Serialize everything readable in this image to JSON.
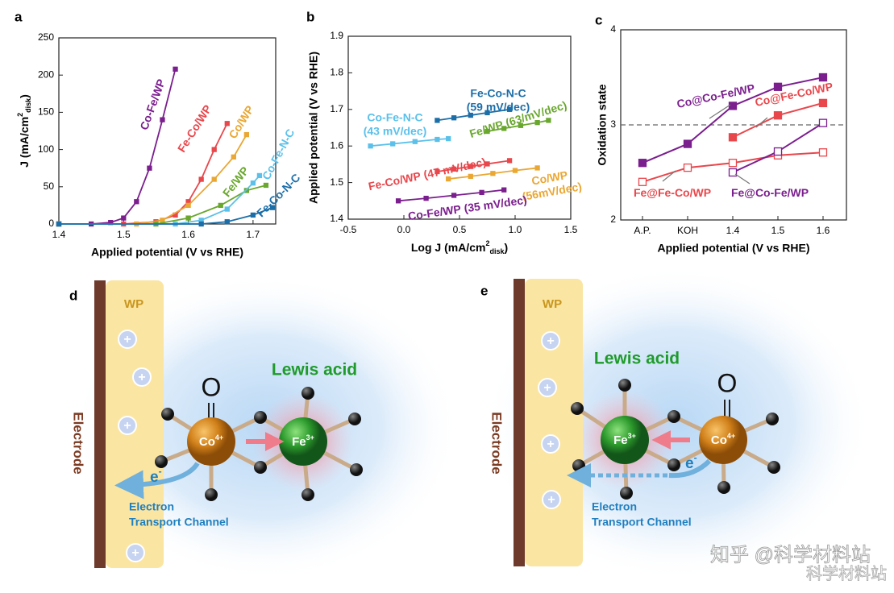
{
  "chart_data": [
    {
      "type": "line",
      "panel": "a",
      "x_label": "Applied potential (V vs RHE)",
      "y_label": [
        "J (mA/cm",
        "2",
        "disk",
        ")"
      ],
      "xlim": [
        1.4,
        1.735
      ],
      "xticks": [
        1.4,
        1.5,
        1.6,
        1.7
      ],
      "ylim": [
        0,
        250
      ],
      "yticks": [
        0,
        50,
        100,
        150,
        200,
        250
      ],
      "series": [
        {
          "name": "Co-Fe/WP",
          "color": "#7b1e8e",
          "x": [
            1.4,
            1.45,
            1.48,
            1.5,
            1.52,
            1.54,
            1.56,
            1.58
          ],
          "values": [
            0,
            0,
            2,
            8,
            30,
            75,
            140,
            208
          ]
        },
        {
          "name": "Fe-Co/WP",
          "color": "#e8474c",
          "x": [
            1.4,
            1.5,
            1.55,
            1.58,
            1.6,
            1.62,
            1.64,
            1.66
          ],
          "values": [
            0,
            0,
            3,
            12,
            30,
            60,
            100,
            135
          ]
        },
        {
          "name": "Co/WP",
          "color": "#eaa733",
          "x": [
            1.4,
            1.52,
            1.56,
            1.6,
            1.64,
            1.67,
            1.69
          ],
          "values": [
            0,
            0,
            5,
            25,
            60,
            90,
            120
          ]
        },
        {
          "name": "Fe/WP",
          "color": "#6aa72e",
          "x": [
            1.4,
            1.55,
            1.6,
            1.65,
            1.69,
            1.72
          ],
          "values": [
            0,
            0,
            8,
            25,
            45,
            52
          ]
        },
        {
          "name": "Co-Fe-N-C",
          "color": "#5bc0ea",
          "x": [
            1.4,
            1.58,
            1.62,
            1.66,
            1.7,
            1.71
          ],
          "values": [
            0,
            0,
            5,
            20,
            55,
            65
          ]
        },
        {
          "name": "Fe-Co-N-C",
          "color": "#1c6ea8",
          "x": [
            1.4,
            1.62,
            1.66,
            1.7,
            1.73
          ],
          "values": [
            0,
            0,
            3,
            12,
            22
          ]
        }
      ]
    },
    {
      "type": "line",
      "panel": "b",
      "x_label": [
        "Log J (mA/cm",
        "2",
        "disk",
        ")"
      ],
      "y_label": "Applied potential (V vs RHE)",
      "xlim": [
        -0.5,
        1.5
      ],
      "xticks": [
        -0.5,
        {
          "value": 0,
          "label": "0.0"
        },
        0.5,
        {
          "value": 1,
          "label": "1.0"
        },
        1.5
      ],
      "ylim": [
        1.4,
        1.9
      ],
      "yticks": [
        1.4,
        1.5,
        1.6,
        1.7,
        1.8,
        1.9
      ],
      "series": [
        {
          "name": "Co-Fe-N-C",
          "slope_label": "(43 mV/dec)",
          "color": "#5bc0ea",
          "x": [
            -0.3,
            -0.1,
            0.1,
            0.3,
            0.4
          ],
          "values": [
            1.6,
            1.606,
            1.612,
            1.618,
            1.62
          ]
        },
        {
          "name": "Fe-Co-N-C",
          "slope_label": "(59 mV/dec)",
          "color": "#1c6ea8",
          "x": [
            0.3,
            0.45,
            0.6,
            0.75,
            0.95
          ],
          "values": [
            1.67,
            1.677,
            1.684,
            1.691,
            1.7
          ]
        },
        {
          "name": "Fe/WP",
          "slope_label": "(63/mV/dec)",
          "color": "#6aa72e",
          "x": [
            0.75,
            0.9,
            1.05,
            1.2,
            1.3
          ],
          "values": [
            1.64,
            1.648,
            1.656,
            1.664,
            1.67
          ]
        },
        {
          "name": "Fe-Co/WP",
          "slope_label": "(47 mV/dec)",
          "color": "#e8474c",
          "x": [
            0.3,
            0.45,
            0.6,
            0.75,
            0.95
          ],
          "values": [
            1.53,
            1.537,
            1.544,
            1.551,
            1.56
          ]
        },
        {
          "name": "Co/WP",
          "slope_label": "(56mV/dec)",
          "color": "#eaa733",
          "x": [
            0.4,
            0.6,
            0.8,
            1.0,
            1.2
          ],
          "values": [
            1.51,
            1.517,
            1.525,
            1.533,
            1.54
          ]
        },
        {
          "name": "Co-Fe/WP",
          "slope_label": "(35 mV/dec)",
          "color": "#7b1e8e",
          "x": [
            -0.05,
            0.2,
            0.45,
            0.7,
            0.9
          ],
          "values": [
            1.45,
            1.457,
            1.465,
            1.473,
            1.48
          ]
        }
      ]
    },
    {
      "type": "line",
      "panel": "c",
      "x_label": "Applied potential (V vs RHE)",
      "y_label": "Oxidation state",
      "categories": [
        "A.P.",
        "KOH",
        "1.4",
        "1.5",
        "1.6"
      ],
      "ylim": [
        2,
        4
      ],
      "yticks": [
        2,
        3,
        4
      ],
      "reference_line": 3,
      "series": [
        {
          "name": "Co@Co-Fe/WP",
          "color": "#7b1e8e",
          "filled": true,
          "values": [
            2.6,
            2.8,
            3.2,
            3.4,
            3.5
          ]
        },
        {
          "name": "Co@Fe-Co/WP",
          "color": "#e8474c",
          "filled": true,
          "values": [
            null,
            null,
            2.87,
            3.1,
            3.23
          ]
        },
        {
          "name": "Fe@Fe-Co/WP",
          "color": "#e8474c",
          "filled": false,
          "values": [
            2.4,
            2.55,
            2.6,
            2.68,
            2.71
          ]
        },
        {
          "name": "Fe@Co-Fe/WP",
          "color": "#7b1e8e",
          "filled": false,
          "values": [
            null,
            null,
            2.5,
            2.72,
            3.02
          ]
        }
      ]
    }
  ],
  "diagrams": [
    {
      "panel": "d",
      "wp": "WP",
      "electrode": "Electrode",
      "oxygen": "O",
      "co": [
        "Co",
        "4+"
      ],
      "fe": [
        "Fe",
        "3+"
      ],
      "lewis_acid": "Lewis acid",
      "electron": [
        "e",
        "-"
      ],
      "channel": [
        "Electron",
        "Transport Channel"
      ]
    },
    {
      "panel": "e",
      "wp": "WP",
      "electrode": "Electrode",
      "oxygen": "O",
      "co": [
        "Co",
        "4+"
      ],
      "fe": [
        "Fe",
        "3+"
      ],
      "lewis_acid": "Lewis acid",
      "electron": [
        "e",
        "-"
      ],
      "channel": [
        "Electron",
        "Transport Channel"
      ]
    }
  ],
  "watermark": [
    "知乎 @科学材料站",
    "科学材料站"
  ]
}
